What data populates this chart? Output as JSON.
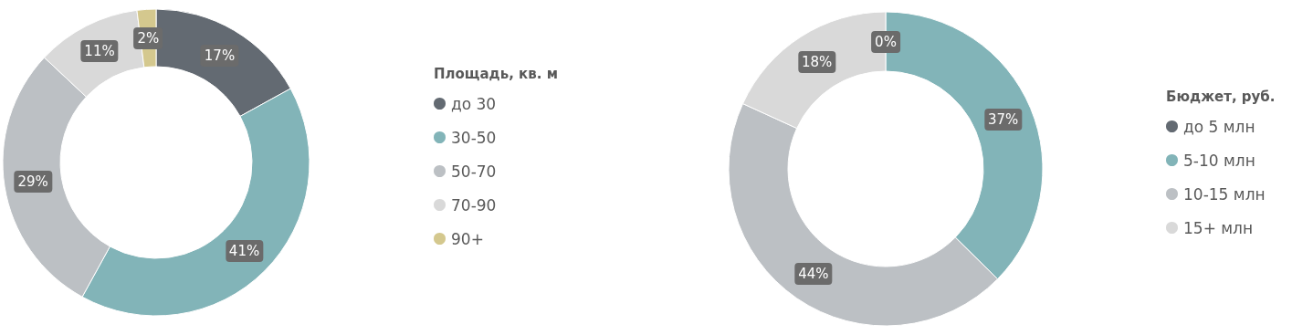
{
  "chart_data": [
    {
      "type": "donut",
      "legend_title": "Площадь, кв. м",
      "categories": [
        "до 30",
        "30-50",
        "50-70",
        "70-90",
        "90+"
      ],
      "values": [
        17,
        41,
        29,
        11,
        2
      ],
      "colors": [
        "#636a72",
        "#82b4b8",
        "#bcc0c4",
        "#d9d9d9",
        "#d4c88e"
      ],
      "legend": "right",
      "value_labels": [
        "17%",
        "41%",
        "29%",
        "11%",
        "2%"
      ]
    },
    {
      "type": "donut",
      "legend_title": "Бюджет, руб.",
      "categories": [
        "до 5 млн",
        "5-10 млн",
        "10-15 млн",
        "15+ млн"
      ],
      "values": [
        0,
        37,
        44,
        18
      ],
      "colors": [
        "#636a72",
        "#82b4b8",
        "#bcc0c4",
        "#d9d9d9"
      ],
      "legend": "right",
      "value_labels": [
        "0%",
        "37%",
        "44%",
        "18%"
      ]
    }
  ]
}
